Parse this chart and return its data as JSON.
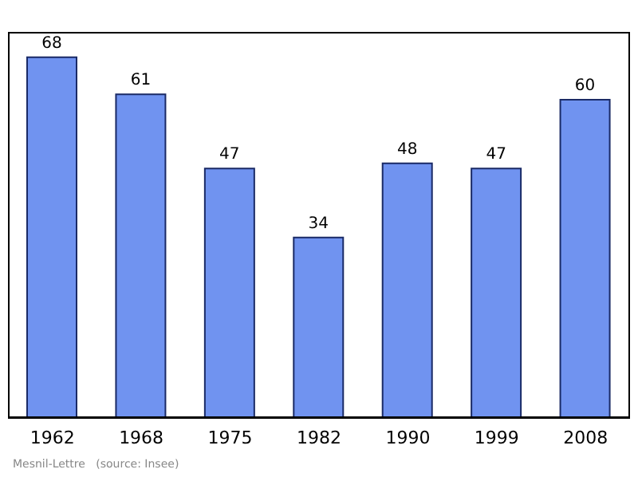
{
  "chart_data": {
    "type": "bar",
    "categories": [
      "1962",
      "1968",
      "1975",
      "1982",
      "1990",
      "1999",
      "2008"
    ],
    "values": [
      68,
      61,
      47,
      34,
      48,
      47,
      60
    ],
    "color": "#7093f0",
    "data_labels": true,
    "annotations": [
      "Mesnil-Lettre   (source: Insee)"
    ]
  }
}
